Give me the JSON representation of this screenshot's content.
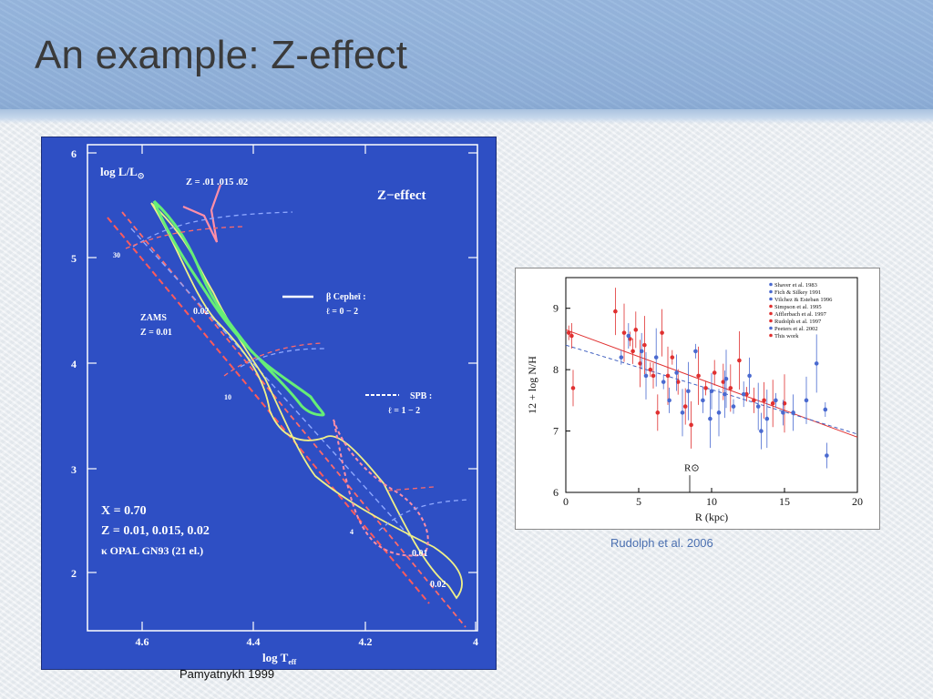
{
  "slide": {
    "title": "An example: Z-effect",
    "caption_left": "Pamyatnykh 1999",
    "caption_right": "Rudolph et al. 2006"
  },
  "colors": {
    "hr_background": "#2e4fc4",
    "z001": "#ff8fa8",
    "z0015": "#66ee77",
    "z002": "#eeee88",
    "zams": "#ff5a5a",
    "dashed_blue": "#8fa8ff"
  },
  "hr_diagram": {
    "y_label": "log L/L",
    "x_label": "log T",
    "x_label_sub": "eff",
    "y_label_sub": "⊙",
    "x_ticks": [
      "4.6",
      "4.4",
      "4.2",
      "4"
    ],
    "y_ticks": [
      "6",
      "5",
      "4",
      "3",
      "2"
    ],
    "corner_title": "Z−effect",
    "z_header": "Z = .01  .015  .02",
    "legend_cephei_line1": "β Cepheī :",
    "legend_cephei_line2": "ℓ = 0 − 2",
    "legend_spb_line1": "SPB :",
    "legend_spb_line2": "ℓ = 1 − 2",
    "zams_label_line1": "ZAMS",
    "zams_label_line2": "Z = 0.01",
    "mass_30": "30",
    "mass_10": "10",
    "mass_4": "4",
    "label_002_upper": "0.02",
    "label_001_lower": "0.01",
    "label_002_lower": "0.02",
    "param_x": "X = 0.70",
    "param_z": "Z = 0.01, 0.015, 0.02",
    "param_opal": "κ  OPAL GN93 (21 el.)"
  },
  "chart_data": {
    "type": "scatter",
    "xlabel": "R (kpc)",
    "ylabel": "12 + log N/H",
    "xlim": [
      0,
      20
    ],
    "ylim": [
      6,
      9.5
    ],
    "x_ticks": [
      "0",
      "5",
      "10",
      "15",
      "20"
    ],
    "y_ticks": [
      "6",
      "7",
      "8",
      "9"
    ],
    "annotation": "R⊙",
    "annotation_x": 8.5,
    "legend_position": "top-right",
    "legend": [
      "Shaver et al. 1983",
      "Fich & Silkey 1991",
      "Vilchez & Esteban 1996",
      "Simpson et al. 1995",
      "Afflerbach et al. 1997",
      "Rudolph et al. 1997",
      "Peeters et al. 2002",
      "This work"
    ],
    "fits": [
      {
        "x": [
          0,
          20
        ],
        "y": [
          8.65,
          6.9
        ],
        "color": "#e03030",
        "dash": false
      },
      {
        "x": [
          0,
          20
        ],
        "y": [
          8.4,
          6.95
        ],
        "color": "#4060c0",
        "dash": true
      }
    ],
    "series": [
      {
        "color": "#e03030",
        "points": [
          [
            0.2,
            8.6
          ],
          [
            0.4,
            8.55
          ],
          [
            0.5,
            7.7
          ],
          [
            3.4,
            8.95
          ],
          [
            4.0,
            8.6
          ],
          [
            4.4,
            8.5
          ],
          [
            4.6,
            8.3
          ],
          [
            4.8,
            8.65
          ],
          [
            5.1,
            8.1
          ],
          [
            5.4,
            8.4
          ],
          [
            5.8,
            8.0
          ],
          [
            6.0,
            7.9
          ],
          [
            6.3,
            7.3
          ],
          [
            6.6,
            8.6
          ],
          [
            7.0,
            7.9
          ],
          [
            7.3,
            8.2
          ],
          [
            7.7,
            7.8
          ],
          [
            8.2,
            7.4
          ],
          [
            8.6,
            7.1
          ],
          [
            9.1,
            7.9
          ],
          [
            9.6,
            7.7
          ],
          [
            10.2,
            7.95
          ],
          [
            10.8,
            7.8
          ],
          [
            11.3,
            7.7
          ],
          [
            11.9,
            8.15
          ],
          [
            12.4,
            7.6
          ],
          [
            12.9,
            7.5
          ],
          [
            13.6,
            7.5
          ],
          [
            14.2,
            7.45
          ],
          [
            15.0,
            7.45
          ]
        ]
      },
      {
        "color": "#4a6ad0",
        "points": [
          [
            3.8,
            8.2
          ],
          [
            4.3,
            8.55
          ],
          [
            5.2,
            8.3
          ],
          [
            5.5,
            7.9
          ],
          [
            6.2,
            8.2
          ],
          [
            6.7,
            7.8
          ],
          [
            7.1,
            7.5
          ],
          [
            7.6,
            7.95
          ],
          [
            8.0,
            7.3
          ],
          [
            8.4,
            7.65
          ],
          [
            8.9,
            8.3
          ],
          [
            9.4,
            7.5
          ],
          [
            10.0,
            7.65
          ],
          [
            10.5,
            7.3
          ],
          [
            11.0,
            7.85
          ],
          [
            11.5,
            7.4
          ],
          [
            12.2,
            7.6
          ],
          [
            12.6,
            7.9
          ],
          [
            13.2,
            7.4
          ],
          [
            13.8,
            7.2
          ],
          [
            14.4,
            7.5
          ],
          [
            14.9,
            7.3
          ],
          [
            15.6,
            7.3
          ],
          [
            16.5,
            7.5
          ],
          [
            17.2,
            8.1
          ],
          [
            17.8,
            7.35
          ],
          [
            17.9,
            6.6
          ],
          [
            13.4,
            7.0
          ],
          [
            10.9,
            7.6
          ],
          [
            9.9,
            7.2
          ]
        ]
      }
    ]
  }
}
